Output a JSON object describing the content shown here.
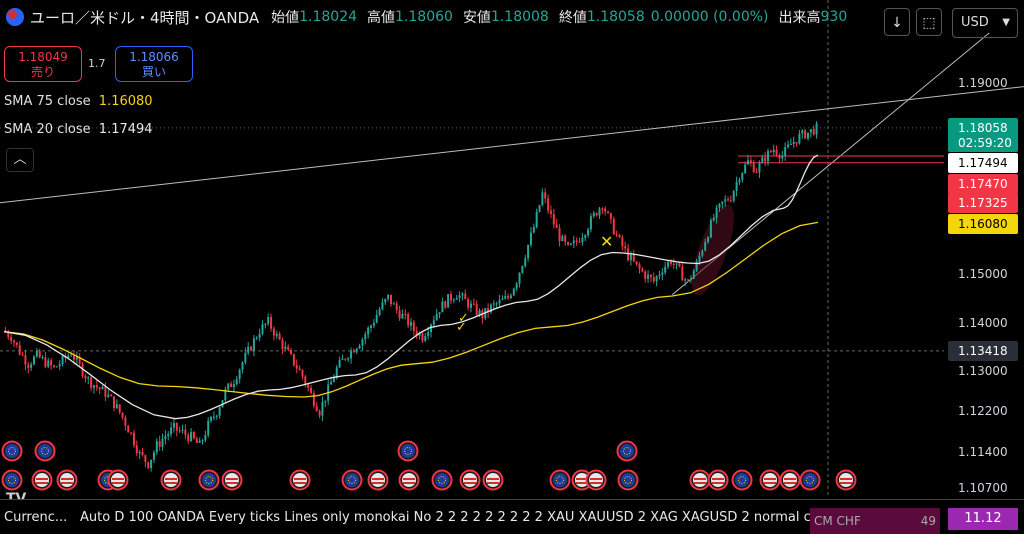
{
  "header": {
    "symbol": "ユーロ／米ドル・4時間・OANDA",
    "open_label": "始値",
    "open": "1.18024",
    "high_label": "高値",
    "high": "1.18060",
    "low_label": "安値",
    "low": "1.18008",
    "close_label": "終値",
    "close": "1.18058",
    "change": "0.00000 (0.00%)",
    "volume_label": "出来高",
    "volume": "930"
  },
  "trade": {
    "sell_price": "1.18049",
    "sell_label": "売り",
    "spread": "1.7",
    "buy_price": "1.18066",
    "buy_label": "買い"
  },
  "indicators": [
    {
      "label": "SMA 75 close",
      "value": "1.16080",
      "color": "#f5d60a"
    },
    {
      "label": "SMA 20 close",
      "value": "1.17494",
      "color": "#e8e8e8"
    }
  ],
  "toolbar": {
    "scroll_icon": "arrow-down-icon",
    "expand_icon": "fullscreen-icon",
    "currency": "USD"
  },
  "bottom_bar": {
    "title": "Currenc...",
    "settings": "Auto D 100 OANDA Every ticks Lines only monokai No 2 2 2 2 2 2 2 2 2 XAU XAUUSD 2 XAG XAGUSD 2 normal c",
    "pill_text": "CM   CHF",
    "pill_num": "49",
    "value": "11.12"
  },
  "tv_logo": "TV",
  "chart_data": {
    "type": "candlestick",
    "yaxis_ticks": [
      1.19,
      1.15,
      1.14,
      1.13,
      1.122,
      1.114,
      1.107
    ],
    "yaxis_tick_labels": [
      "1.19000",
      "1.15000",
      "1.14000",
      "1.13000",
      "1.12200",
      "1.11400",
      "1.10700"
    ],
    "price_labels": [
      {
        "value": "1.18058",
        "sub": "02:59:20",
        "bg": "#089981",
        "fg": "#ffffff"
      },
      {
        "value": "1.17494",
        "sub": "",
        "bg": "#ffffff",
        "fg": "#000000"
      },
      {
        "value": "1.17470",
        "sub": "",
        "bg": "#f23645",
        "fg": "#ffffff"
      },
      {
        "value": "1.17325",
        "sub": "",
        "bg": "#f23645",
        "fg": "#ffffff"
      },
      {
        "value": "1.16080",
        "sub": "",
        "bg": "#f5d60a",
        "fg": "#000000"
      },
      {
        "value": "1.13418",
        "sub": "",
        "bg": "#2a2e39",
        "fg": "#ffffff"
      }
    ],
    "close_path": [
      1.1385,
      1.1372,
      1.134,
      1.1315,
      1.1332,
      1.1318,
      1.1305,
      1.1322,
      1.1338,
      1.131,
      1.1282,
      1.1268,
      1.1256,
      1.1235,
      1.1208,
      1.1175,
      1.1135,
      1.1118,
      1.1152,
      1.1172,
      1.1186,
      1.1178,
      1.1168,
      1.1152,
      1.1192,
      1.122,
      1.1258,
      1.1282,
      1.1318,
      1.1352,
      1.1385,
      1.1402,
      1.1372,
      1.1345,
      1.1318,
      1.129,
      1.1252,
      1.122,
      1.1262,
      1.1305,
      1.133,
      1.1348,
      1.1368,
      1.1395,
      1.1428,
      1.1452,
      1.1426,
      1.1408,
      1.1385,
      1.1372,
      1.1402,
      1.143,
      1.1448,
      1.146,
      1.1445,
      1.1428,
      1.1415,
      1.1432,
      1.1442,
      1.1452,
      1.1488,
      1.1542,
      1.1598,
      1.1668,
      1.162,
      1.1578,
      1.1552,
      1.1568,
      1.1592,
      1.1622,
      1.1648,
      1.1605,
      1.1568,
      1.1538,
      1.1515,
      1.1498,
      1.1485,
      1.1512,
      1.1528,
      1.1505,
      1.1482,
      1.152,
      1.1572,
      1.1618,
      1.1648,
      1.1662,
      1.1708,
      1.1735,
      1.1718,
      1.1745,
      1.1762,
      1.1748,
      1.1772,
      1.1788,
      1.1796,
      1.1805
    ],
    "sma20_anchor": [
      [
        0,
        1.1382
      ],
      [
        20,
        1.1205
      ],
      [
        31,
        1.1262
      ],
      [
        41,
        1.1292
      ],
      [
        51,
        1.1395
      ],
      [
        61,
        1.1444
      ],
      [
        71,
        1.1545
      ],
      [
        81,
        1.1522
      ],
      [
        91,
        1.1638
      ],
      [
        95,
        1.1749
      ]
    ],
    "sma75_anchor": [
      [
        0,
        1.1382
      ],
      [
        18,
        1.127
      ],
      [
        35,
        1.1248
      ],
      [
        48,
        1.1315
      ],
      [
        64,
        1.1392
      ],
      [
        78,
        1.1455
      ],
      [
        95,
        1.1608
      ]
    ],
    "trendlines": [
      {
        "from": [
          -4,
          1.1642
        ],
        "to": [
          135,
          1.1925
        ],
        "color": "#bdbdbd"
      },
      {
        "from": [
          78,
          1.1458
        ],
        "to": [
          115,
          1.2005
        ],
        "color": "#bdbdbd"
      }
    ],
    "hlines": [
      {
        "value": 1.1747,
        "color": "#f23645"
      },
      {
        "value": 1.1733,
        "color": "#f23645"
      }
    ],
    "crosshair_y": 1.13418
  }
}
